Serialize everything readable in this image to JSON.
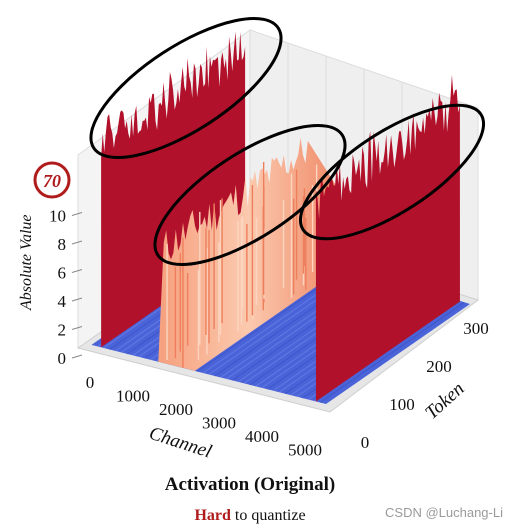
{
  "chart_data": {
    "type": "surface3d",
    "title": "Activation (Original)",
    "subtitle_emph": "Hard",
    "subtitle_rest": " to quantize",
    "xlabel": "Channel",
    "ylabel": "Token",
    "zlabel": "Absolute Value",
    "xticks": [
      "0",
      "1000",
      "2000",
      "3000",
      "4000",
      "5000"
    ],
    "yticks": [
      "0",
      "100",
      "200",
      "300"
    ],
    "zticks": [
      "0",
      "2",
      "4",
      "6",
      "8",
      "10"
    ],
    "z_peak_label": "70",
    "xlim": [
      0,
      5120
    ],
    "ylim": [
      0,
      340
    ],
    "outlier_channels": [
      {
        "channel": 200,
        "value": 70
      },
      {
        "channel": 1850,
        "value": 50
      },
      {
        "channel": 4900,
        "value": 70
      }
    ],
    "colors": {
      "low": "#4a63d8",
      "mid": "#f7a582",
      "high": "#b2112b",
      "marker": "#b01c1c"
    }
  },
  "watermark": "CSDN @Luchang-Li"
}
